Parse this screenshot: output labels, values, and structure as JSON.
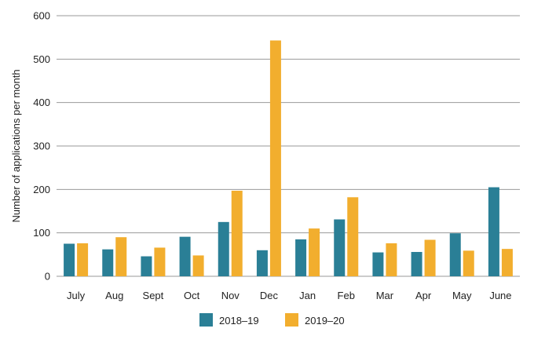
{
  "chart_data": {
    "type": "bar",
    "title": "",
    "xlabel": "",
    "ylabel": "Number of applications per month",
    "ylim": [
      0,
      600
    ],
    "yticks": [
      "0",
      "100",
      "200",
      "300",
      "400",
      "500",
      "600"
    ],
    "grid": true,
    "legend_position": "bottom-center",
    "categories": [
      "July",
      "Aug",
      "Sept",
      "Oct",
      "Nov",
      "Dec",
      "Jan",
      "Feb",
      "Mar",
      "Apr",
      "May",
      "June"
    ],
    "series": [
      {
        "name": "2018–19",
        "color": "#2a7f96",
        "values": [
          75,
          62,
          46,
          91,
          125,
          60,
          85,
          131,
          55,
          56,
          99,
          205
        ]
      },
      {
        "name": "2019–20",
        "color": "#f2ae2e",
        "values": [
          76,
          90,
          66,
          48,
          197,
          543,
          110,
          182,
          76,
          84,
          59,
          63
        ]
      }
    ]
  }
}
